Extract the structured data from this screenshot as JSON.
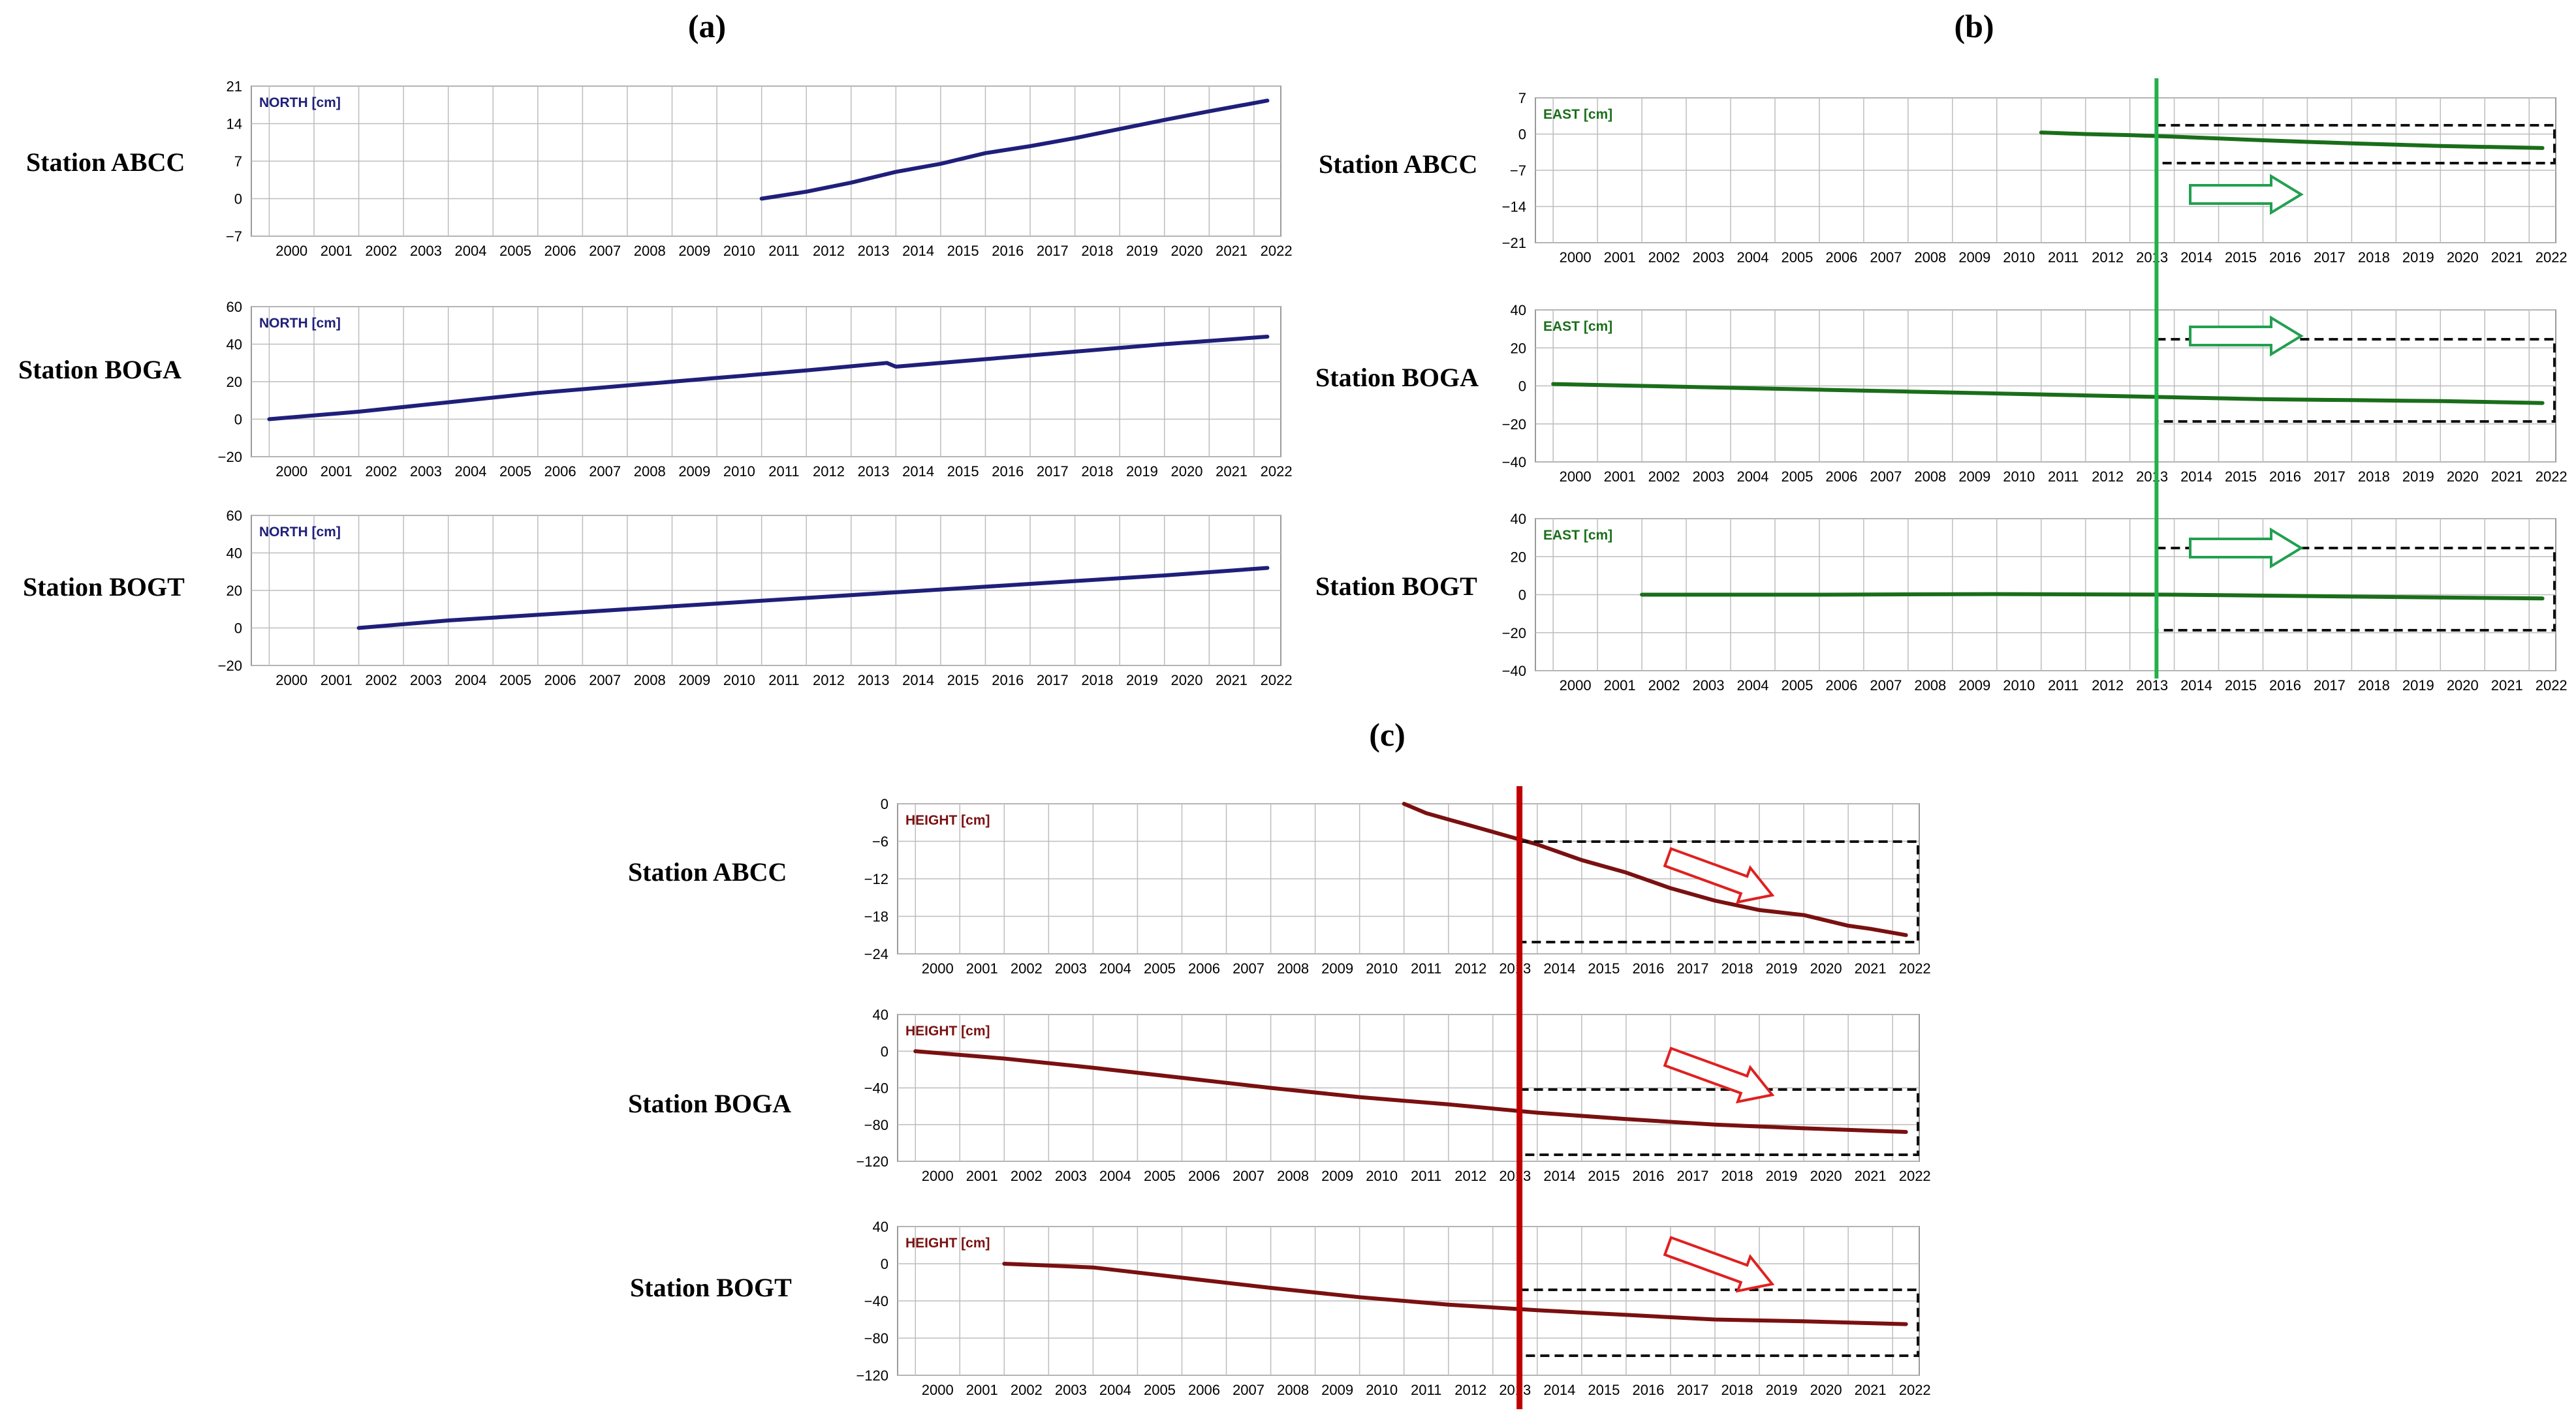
{
  "colors": {
    "north": "#1f1f7a",
    "east": "#1a6e1a",
    "height": "#7a1010",
    "green_line": "#22b04a",
    "red_line": "#c00000",
    "arrow_green": "#22a050",
    "arrow_red": "#e02020",
    "grid": "#bdbdbd"
  },
  "panels": [
    {
      "id": "a",
      "label": "(a)",
      "component": "north"
    },
    {
      "id": "b",
      "label": "(b)",
      "component": "east"
    },
    {
      "id": "c",
      "label": "(c)",
      "component": "height"
    }
  ],
  "stations": [
    "Station ABCC",
    "Station BOGA",
    "Station BOGT"
  ],
  "years": [
    "2000",
    "2001",
    "2002",
    "2003",
    "2004",
    "2005",
    "2006",
    "2007",
    "2008",
    "2009",
    "2010",
    "2011",
    "2012",
    "2013",
    "2014",
    "2015",
    "2016",
    "2017",
    "2018",
    "2019",
    "2020",
    "2021",
    "2022"
  ],
  "chart_data": [
    {
      "type": "line",
      "panel": "a",
      "station": "Station ABCC",
      "title": "NORTH [cm]",
      "ylim": [
        -7,
        21
      ],
      "yticks": [
        "21",
        "14",
        "7",
        "0",
        "−7"
      ],
      "x": [
        2011.0,
        2012.0,
        2013.0,
        2014.0,
        2015.0,
        2016.0,
        2017.0,
        2018.0,
        2019.0,
        2020.0,
        2021.0,
        2022.3
      ],
      "values": [
        0,
        1.3,
        3.0,
        5.0,
        6.5,
        8.5,
        9.8,
        11.3,
        13.0,
        14.7,
        16.3,
        18.3
      ]
    },
    {
      "type": "line",
      "panel": "a",
      "station": "Station BOGA",
      "title": "NORTH [cm]",
      "ylim": [
        -20,
        60
      ],
      "yticks": [
        "60",
        "40",
        "20",
        "0",
        "−20"
      ],
      "x": [
        2000.0,
        2002.0,
        2004.0,
        2006.0,
        2008.0,
        2010.0,
        2012.0,
        2013.8,
        2014.0,
        2016.0,
        2018.0,
        2020.0,
        2022.3
      ],
      "values": [
        0,
        4,
        9,
        14,
        18,
        22,
        26,
        30,
        28,
        32,
        36,
        40,
        44
      ]
    },
    {
      "type": "line",
      "panel": "a",
      "station": "Station BOGT",
      "title": "NORTH [cm]",
      "ylim": [
        -20,
        60
      ],
      "yticks": [
        "60",
        "40",
        "20",
        "0",
        "−20"
      ],
      "x": [
        2002.0,
        2004.0,
        2006.0,
        2008.0,
        2010.0,
        2012.0,
        2014.0,
        2016.0,
        2018.0,
        2020.0,
        2022.3
      ],
      "values": [
        0,
        4,
        7,
        10,
        13,
        16,
        19,
        22,
        25,
        28,
        32
      ]
    },
    {
      "type": "line",
      "panel": "b",
      "station": "Station ABCC",
      "title": "EAST [cm]",
      "ylim": [
        -21,
        7
      ],
      "yticks": [
        "7",
        "0",
        "−7",
        "−14",
        "−21"
      ],
      "x": [
        2011.0,
        2012.0,
        2013.0,
        2014.0,
        2016.0,
        2018.0,
        2020.0,
        2022.3
      ],
      "values": [
        0.3,
        0,
        -0.2,
        -0.5,
        -1.2,
        -1.8,
        -2.3,
        -2.7
      ]
    },
    {
      "type": "line",
      "panel": "b",
      "station": "Station BOGA",
      "title": "EAST [cm]",
      "ylim": [
        -40,
        40
      ],
      "yticks": [
        "40",
        "20",
        "0",
        "−20",
        "−40"
      ],
      "x": [
        2000.0,
        2002.0,
        2004.0,
        2006.0,
        2008.0,
        2010.0,
        2012.0,
        2014.0,
        2016.0,
        2018.0,
        2020.0,
        2022.3
      ],
      "values": [
        1,
        0,
        -1,
        -2,
        -3,
        -4,
        -5,
        -6,
        -7,
        -7.5,
        -8,
        -9
      ]
    },
    {
      "type": "line",
      "panel": "b",
      "station": "Station BOGT",
      "title": "EAST [cm]",
      "ylim": [
        -40,
        40
      ],
      "yticks": [
        "40",
        "20",
        "0",
        "−20",
        "−40"
      ],
      "x": [
        2002.0,
        2006.0,
        2010.0,
        2014.0,
        2018.0,
        2022.3
      ],
      "values": [
        0,
        0,
        0.3,
        0,
        -1,
        -2
      ]
    },
    {
      "type": "line",
      "panel": "c",
      "station": "Station ABCC",
      "title": "HEIGHT [cm]",
      "ylim": [
        -24,
        0
      ],
      "yticks": [
        "0",
        "−6",
        "−12",
        "−18",
        "−24"
      ],
      "x": [
        2011.0,
        2011.5,
        2012.0,
        2012.5,
        2013.0,
        2013.5,
        2014.0,
        2015.0,
        2016.0,
        2017.0,
        2018.0,
        2019.0,
        2020.0,
        2021.0,
        2021.5,
        2022.3
      ],
      "values": [
        0,
        -1.5,
        -2.5,
        -3.5,
        -4.5,
        -5.5,
        -6.5,
        -9,
        -11,
        -13.5,
        -15.5,
        -17,
        -17.8,
        -19.5,
        -20,
        -21
      ]
    },
    {
      "type": "line",
      "panel": "c",
      "station": "Station BOGA",
      "title": "HEIGHT [cm]",
      "ylim": [
        -120,
        40
      ],
      "yticks": [
        "40",
        "0",
        "−40",
        "−80",
        "−120"
      ],
      "x": [
        2000.0,
        2002.0,
        2004.0,
        2006.0,
        2008.0,
        2010.0,
        2012.0,
        2014.0,
        2016.0,
        2018.0,
        2020.0,
        2022.3
      ],
      "values": [
        0,
        -8,
        -18,
        -29,
        -40,
        -50,
        -58,
        -67,
        -74,
        -80,
        -84,
        -88
      ]
    },
    {
      "type": "line",
      "panel": "c",
      "station": "Station BOGT",
      "title": "HEIGHT [cm]",
      "ylim": [
        -120,
        40
      ],
      "yticks": [
        "40",
        "0",
        "−40",
        "−80",
        "−120"
      ],
      "x": [
        2002.0,
        2003.0,
        2004.0,
        2006.0,
        2008.0,
        2010.0,
        2012.0,
        2014.0,
        2016.0,
        2018.0,
        2020.0,
        2022.3
      ],
      "values": [
        0,
        -2,
        -4,
        -15,
        -26,
        -36,
        -44,
        -50,
        -55,
        -60,
        -62,
        -65
      ]
    }
  ]
}
